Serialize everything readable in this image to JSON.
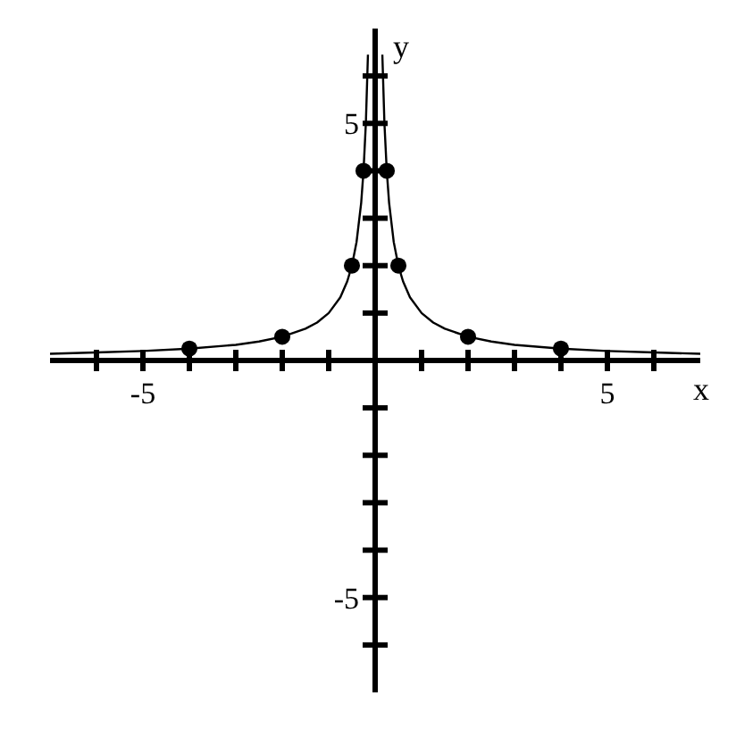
{
  "chart_data": {
    "type": "line",
    "xlabel": "x",
    "ylabel": "y",
    "xlim": [
      -7,
      7
    ],
    "ylim": [
      -7,
      7
    ],
    "grid": false,
    "xticks": [
      {
        "value": -6,
        "label": null
      },
      {
        "value": -5,
        "label": "-5"
      },
      {
        "value": -4,
        "label": null
      },
      {
        "value": -3,
        "label": null
      },
      {
        "value": -2,
        "label": null
      },
      {
        "value": -1,
        "label": null
      },
      {
        "value": 1,
        "label": null
      },
      {
        "value": 2,
        "label": null
      },
      {
        "value": 3,
        "label": null
      },
      {
        "value": 4,
        "label": null
      },
      {
        "value": 5,
        "label": "5"
      },
      {
        "value": 6,
        "label": null
      }
    ],
    "yticks": [
      {
        "value": -6,
        "label": null
      },
      {
        "value": -5,
        "label": "-5"
      },
      {
        "value": -4,
        "label": null
      },
      {
        "value": -3,
        "label": null
      },
      {
        "value": -2,
        "label": null
      },
      {
        "value": -1,
        "label": null
      },
      {
        "value": 1,
        "label": null
      },
      {
        "value": 2,
        "label": null
      },
      {
        "value": 3,
        "label": null
      },
      {
        "value": 4,
        "label": null
      },
      {
        "value": 5,
        "label": "5"
      },
      {
        "value": 6,
        "label": null
      }
    ],
    "series": [
      {
        "color": "#000000",
        "marker": "none",
        "x": [
          -7,
          -6,
          -5,
          -4,
          -3,
          -2.5,
          -2,
          -1.5,
          -1.25,
          -1,
          -0.75,
          -0.6,
          -0.5,
          -0.4,
          -0.3,
          -0.25,
          -0.2,
          -0.155
        ],
        "values": [
          0.14,
          0.17,
          0.2,
          0.25,
          0.33,
          0.4,
          0.5,
          0.67,
          0.8,
          1,
          1.33,
          1.67,
          2,
          2.5,
          3.33,
          4,
          5,
          6.45
        ]
      },
      {
        "color": "#000000",
        "marker": "none",
        "x": [
          0.155,
          0.2,
          0.25,
          0.3,
          0.4,
          0.5,
          0.6,
          0.75,
          1,
          1.25,
          1.5,
          2,
          2.5,
          3,
          4,
          5,
          6,
          7
        ],
        "values": [
          6.45,
          5,
          4,
          3.33,
          2.5,
          2,
          1.67,
          1.33,
          1,
          0.8,
          0.67,
          0.5,
          0.4,
          0.33,
          0.25,
          0.2,
          0.17,
          0.14
        ]
      },
      {
        "type": "scatter",
        "color": "#000000",
        "marker": "circle",
        "x": [
          -4,
          -2,
          -0.5,
          -0.25,
          0.25,
          0.5,
          2,
          4
        ],
        "values": [
          0.25,
          0.5,
          2,
          4,
          4,
          2,
          0.5,
          0.25
        ]
      }
    ]
  }
}
